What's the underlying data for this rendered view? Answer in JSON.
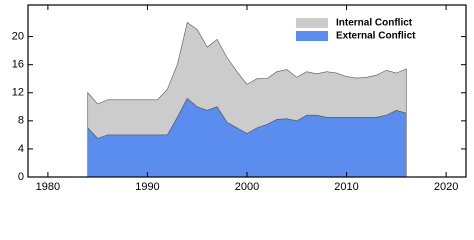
{
  "chart_data": {
    "type": "stacked-area",
    "x": [
      1984,
      1985,
      1986,
      1987,
      1988,
      1989,
      1990,
      1991,
      1992,
      1993,
      1994,
      1995,
      1996,
      1997,
      1998,
      1999,
      2000,
      2001,
      2002,
      2003,
      2004,
      2005,
      2006,
      2007,
      2008,
      2009,
      2010,
      2011,
      2012,
      2013,
      2014,
      2015,
      2016
    ],
    "series": [
      {
        "name": "External Conflict",
        "color": "#5b8def",
        "values": [
          7,
          5.5,
          6,
          6,
          6,
          6,
          6,
          6,
          6,
          8.5,
          11.2,
          10,
          9.5,
          10,
          7.8,
          7,
          6.2,
          7,
          7.5,
          8.2,
          8.3,
          8,
          8.8,
          8.8,
          8.5,
          8.5,
          8.5,
          8.5,
          8.5,
          8.5,
          8.8,
          9.5,
          9.1
        ]
      },
      {
        "name": "Internal Conflict",
        "color": "#cccccc",
        "values": [
          5,
          4.9,
          5,
          5,
          5,
          5,
          5,
          5,
          6.5,
          7.5,
          10.8,
          11,
          9,
          9.6,
          9.2,
          8,
          7,
          7,
          6.5,
          6.8,
          7,
          6.2,
          6.2,
          5.9,
          6.5,
          6.3,
          5.8,
          5.6,
          5.7,
          6,
          6.4,
          5.3,
          6.3
        ]
      }
    ],
    "xlim": [
      1978,
      2022
    ],
    "xticks": [
      1980,
      1990,
      2000,
      2010,
      2020
    ],
    "ylim": [
      0,
      24.5
    ],
    "yticks": [
      0,
      4,
      8,
      12,
      16,
      20
    ],
    "legend": "top-right"
  }
}
